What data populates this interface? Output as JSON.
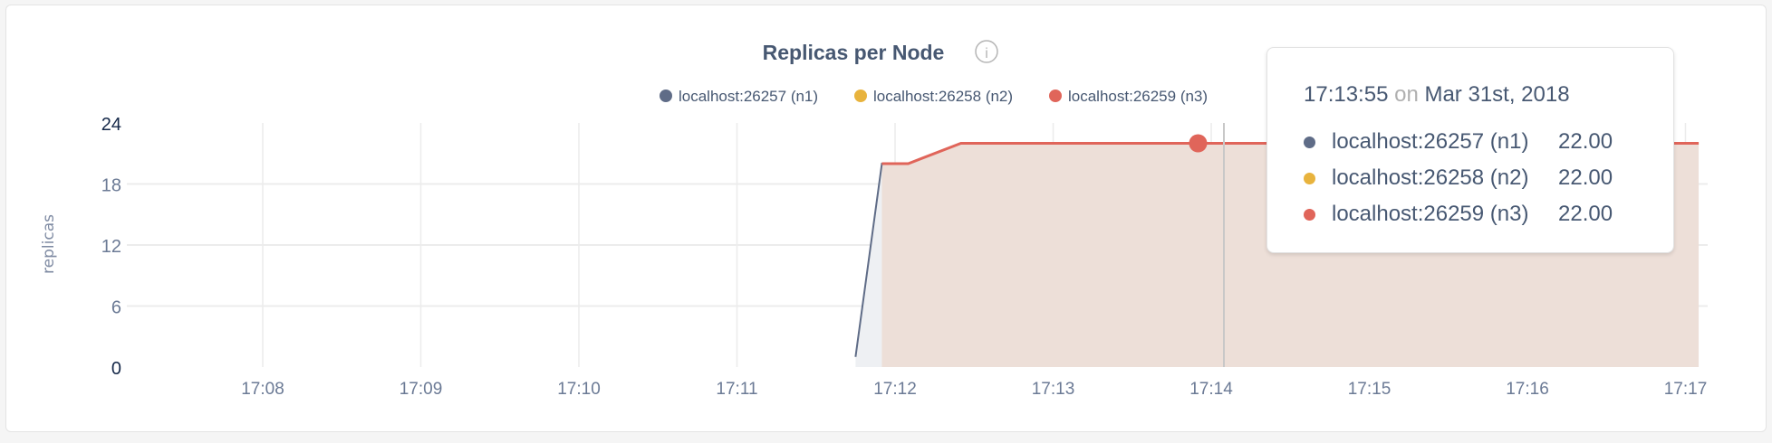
{
  "chart_data": {
    "type": "area",
    "title": "Replicas per Node",
    "ylabel": "replicas",
    "xlabel": "",
    "ylim": [
      0,
      24
    ],
    "yticks": [
      "0",
      "6",
      "12",
      "18",
      "24"
    ],
    "xticks": [
      "17:08",
      "17:09",
      "17:10",
      "17:11",
      "17:12",
      "17:13",
      "17:14",
      "17:15",
      "17:16",
      "17:17"
    ],
    "grid": true,
    "legend_placement": "top-right",
    "series": [
      {
        "name": "localhost:26257 (n1)",
        "color": "#5f6c87",
        "points": [
          [
            "17:11:45",
            1
          ],
          [
            "17:11:55",
            20
          ],
          [
            "17:12:05",
            20
          ],
          [
            "17:12:25",
            22
          ],
          [
            "17:17:05",
            22
          ]
        ]
      },
      {
        "name": "localhost:26258 (n2)",
        "color": "#e8b33d",
        "points": [
          [
            "17:11:55",
            20
          ],
          [
            "17:12:05",
            20
          ],
          [
            "17:12:25",
            22
          ],
          [
            "17:17:05",
            22
          ]
        ]
      },
      {
        "name": "localhost:26259 (n3)",
        "color": "#e0655a",
        "points": [
          [
            "17:11:55",
            20
          ],
          [
            "17:12:05",
            20
          ],
          [
            "17:12:25",
            22
          ],
          [
            "17:17:05",
            22
          ]
        ]
      }
    ],
    "hover": {
      "time": "17:13:55",
      "on": "on",
      "date": "Mar 31st, 2018",
      "values": [
        "22.00",
        "22.00",
        "22.00"
      ]
    }
  }
}
